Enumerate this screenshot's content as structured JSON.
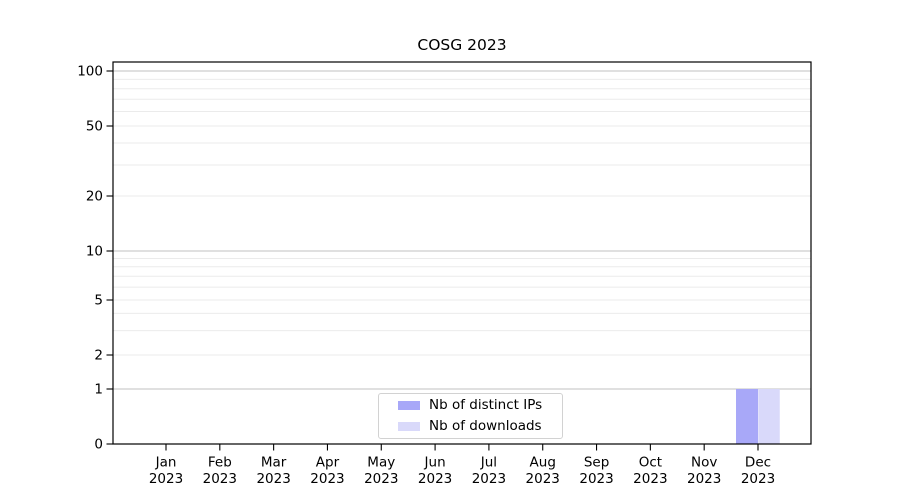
{
  "chart_data": {
    "type": "bar",
    "title": "COSG 2023",
    "categories": [
      "Jan",
      "Feb",
      "Mar",
      "Apr",
      "May",
      "Jun",
      "Jul",
      "Aug",
      "Sep",
      "Oct",
      "Nov",
      "Dec"
    ],
    "category_year": "2023",
    "series": [
      {
        "name": "Nb of distinct IPs",
        "color": "#a8a8f8",
        "values": [
          0,
          0,
          0,
          0,
          0,
          0,
          0,
          0,
          0,
          0,
          0,
          1
        ]
      },
      {
        "name": "Nb of downloads",
        "color": "#d9d9fa",
        "values": [
          0,
          0,
          0,
          0,
          0,
          0,
          0,
          0,
          0,
          0,
          0,
          1
        ]
      }
    ],
    "xlabel": "",
    "ylabel": "",
    "yscale": "log-like (compressed near zero)",
    "ytick_labels": [
      "0",
      "1",
      "2",
      "5",
      "10",
      "20",
      "50",
      "100"
    ],
    "ytick_values": [
      0,
      1,
      2,
      5,
      10,
      20,
      50,
      100
    ],
    "ylim": [
      0,
      110
    ],
    "grid": "both (light minor lines, darker lines at 1, 10, 100)",
    "legend": {
      "position": "bottom-center-inside",
      "entries": [
        "Nb of distinct IPs",
        "Nb of downloads"
      ]
    },
    "colors": {
      "major_grid": "#c0c0c0",
      "minor_grid": "#ebebeb",
      "spine": "#000000",
      "text": "#000000"
    }
  }
}
